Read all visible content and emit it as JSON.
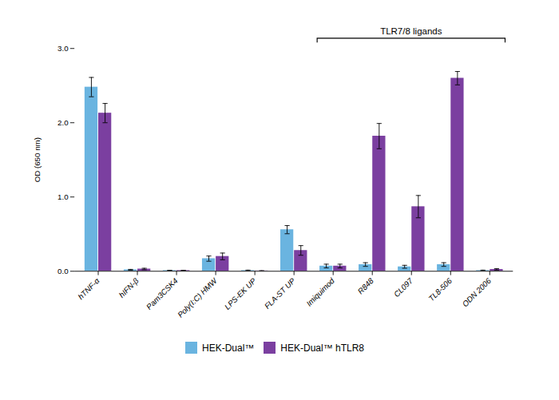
{
  "chart_data": {
    "type": "bar",
    "categories": [
      "hTNF-α",
      "hIFN-β",
      "Pam3CSK4",
      "Poly(I:C) HMW",
      "LPS-EK UP",
      "FLA-ST UP",
      "Imiquimod",
      "R848",
      "CL097",
      "TL8-506",
      "ODN 2006"
    ],
    "series": [
      {
        "name": "HEK-Dual™",
        "color": "#6ab4e0",
        "values": [
          2.48,
          0.02,
          0.01,
          0.17,
          0.01,
          0.56,
          0.07,
          0.09,
          0.06,
          0.09,
          0.01
        ],
        "errors": [
          0.13,
          0.005,
          0.003,
          0.035,
          0.005,
          0.055,
          0.025,
          0.025,
          0.02,
          0.025,
          0.005
        ]
      },
      {
        "name": "HEK-Dual™ hTLR8",
        "color": "#7b3fa0",
        "values": [
          2.13,
          0.03,
          0.01,
          0.2,
          0.005,
          0.28,
          0.07,
          1.82,
          0.87,
          2.6,
          0.025
        ],
        "errors": [
          0.13,
          0.01,
          0.003,
          0.045,
          0.003,
          0.065,
          0.025,
          0.17,
          0.15,
          0.09,
          0.01
        ]
      }
    ],
    "ylabel": "OD (650 nm)",
    "ylim": [
      0,
      3.0
    ],
    "yticks": [
      0,
      1,
      2,
      3
    ],
    "annotations": [
      {
        "text": "TLR7/8 ligands",
        "from": "Imiquimod",
        "to": "ODN 2006"
      }
    ],
    "grid": false,
    "legend": "bottom"
  }
}
